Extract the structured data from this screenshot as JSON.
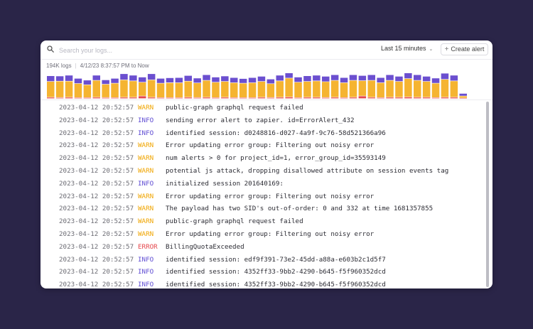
{
  "search": {
    "placeholder": "Search your logs..."
  },
  "toolbar": {
    "time_range": "Last 15 minutes",
    "create_alert_label": "Create alert"
  },
  "summary": {
    "count": "194K logs",
    "range": "4/12/23 8:37:57 PM to Now"
  },
  "colors": {
    "background": "#2a2548",
    "warn": "#f0a500",
    "info": "#5e4bd3",
    "error": "#e5484d",
    "bar_warn": "#f5b431",
    "bar_info": "#6b4fcf",
    "bar_error": "#e5484d"
  },
  "levels_legend": [
    "WARN",
    "INFO",
    "ERROR"
  ],
  "histogram": [
    {
      "warn": 0.62,
      "info": 0.22,
      "error": 0.05
    },
    {
      "warn": 0.64,
      "info": 0.2,
      "error": 0.04
    },
    {
      "warn": 0.63,
      "info": 0.23,
      "error": 0.05
    },
    {
      "warn": 0.55,
      "info": 0.2,
      "error": 0.04
    },
    {
      "warn": 0.5,
      "info": 0.18,
      "error": 0.04
    },
    {
      "warn": 0.66,
      "info": 0.2,
      "error": 0.05
    },
    {
      "warn": 0.52,
      "info": 0.17,
      "error": 0.04
    },
    {
      "warn": 0.56,
      "info": 0.19,
      "error": 0.04
    },
    {
      "warn": 0.68,
      "info": 0.24,
      "error": 0.05
    },
    {
      "warn": 0.64,
      "info": 0.22,
      "error": 0.05
    },
    {
      "warn": 0.54,
      "info": 0.2,
      "error": 0.1
    },
    {
      "warn": 0.68,
      "info": 0.24,
      "error": 0.05
    },
    {
      "warn": 0.56,
      "info": 0.19,
      "error": 0.04
    },
    {
      "warn": 0.58,
      "info": 0.19,
      "error": 0.04
    },
    {
      "warn": 0.58,
      "info": 0.2,
      "error": 0.04
    },
    {
      "warn": 0.63,
      "info": 0.22,
      "error": 0.05
    },
    {
      "warn": 0.57,
      "info": 0.19,
      "error": 0.04
    },
    {
      "warn": 0.66,
      "info": 0.22,
      "error": 0.05
    },
    {
      "warn": 0.6,
      "info": 0.2,
      "error": 0.04
    },
    {
      "warn": 0.62,
      "info": 0.21,
      "error": 0.05
    },
    {
      "warn": 0.58,
      "info": 0.2,
      "error": 0.04
    },
    {
      "warn": 0.56,
      "info": 0.18,
      "error": 0.04
    },
    {
      "warn": 0.58,
      "info": 0.2,
      "error": 0.04
    },
    {
      "warn": 0.62,
      "info": 0.2,
      "error": 0.05
    },
    {
      "warn": 0.54,
      "info": 0.18,
      "error": 0.04
    },
    {
      "warn": 0.64,
      "info": 0.22,
      "error": 0.05
    },
    {
      "warn": 0.74,
      "info": 0.24,
      "error": 0.06
    },
    {
      "warn": 0.6,
      "info": 0.2,
      "error": 0.04
    },
    {
      "warn": 0.62,
      "info": 0.22,
      "error": 0.05
    },
    {
      "warn": 0.64,
      "info": 0.22,
      "error": 0.05
    },
    {
      "warn": 0.62,
      "info": 0.21,
      "error": 0.04
    },
    {
      "warn": 0.66,
      "info": 0.22,
      "error": 0.05
    },
    {
      "warn": 0.58,
      "info": 0.2,
      "error": 0.04
    },
    {
      "warn": 0.66,
      "info": 0.22,
      "error": 0.05
    },
    {
      "warn": 0.6,
      "info": 0.2,
      "error": 0.1
    },
    {
      "warn": 0.66,
      "info": 0.22,
      "error": 0.05
    },
    {
      "warn": 0.58,
      "info": 0.2,
      "error": 0.04
    },
    {
      "warn": 0.66,
      "info": 0.22,
      "error": 0.05
    },
    {
      "warn": 0.62,
      "info": 0.2,
      "error": 0.05
    },
    {
      "warn": 0.72,
      "info": 0.24,
      "error": 0.06
    },
    {
      "warn": 0.66,
      "info": 0.22,
      "error": 0.05
    },
    {
      "warn": 0.62,
      "info": 0.2,
      "error": 0.05
    },
    {
      "warn": 0.56,
      "info": 0.2,
      "error": 0.04
    },
    {
      "warn": 0.7,
      "info": 0.24,
      "error": 0.05
    },
    {
      "warn": 0.64,
      "info": 0.22,
      "error": 0.05
    },
    {
      "warn": 0.08,
      "info": 0.1,
      "error": 0.02
    }
  ],
  "logs": [
    {
      "timestamp": "2023-04-12 20:52:57",
      "level": "WARN",
      "message": "public-graph graphql request failed"
    },
    {
      "timestamp": "2023-04-12 20:52:57",
      "level": "INFO",
      "message": "sending error alert to zapier. id=ErrorAlert_432"
    },
    {
      "timestamp": "2023-04-12 20:52:57",
      "level": "INFO",
      "message": "identified session: d0248816-d027-4a9f-9c76-58d521366a96"
    },
    {
      "timestamp": "2023-04-12 20:52:57",
      "level": "WARN",
      "message": "Error updating error group: Filtering out noisy error"
    },
    {
      "timestamp": "2023-04-12 20:52:57",
      "level": "WARN",
      "message": "num alerts > 0 for project_id=1, error_group_id=35593149"
    },
    {
      "timestamp": "2023-04-12 20:52:57",
      "level": "WARN",
      "message": "potential js attack, dropping disallowed attribute on session events tag"
    },
    {
      "timestamp": "2023-04-12 20:52:57",
      "level": "INFO",
      "message": "initialized session 201640169:"
    },
    {
      "timestamp": "2023-04-12 20:52:57",
      "level": "WARN",
      "message": "Error updating error group: Filtering out noisy error"
    },
    {
      "timestamp": "2023-04-12 20:52:57",
      "level": "WARN",
      "message": "The payload has two SID's out-of-order: 0 and 332 at time 1681357855"
    },
    {
      "timestamp": "2023-04-12 20:52:57",
      "level": "WARN",
      "message": "public-graph graphql request failed"
    },
    {
      "timestamp": "2023-04-12 20:52:57",
      "level": "WARN",
      "message": "Error updating error group: Filtering out noisy error"
    },
    {
      "timestamp": "2023-04-12 20:52:57",
      "level": "ERROR",
      "message": "BillingQuotaExceeded"
    },
    {
      "timestamp": "2023-04-12 20:52:57",
      "level": "INFO",
      "message": "identified session: edf9f391-73e2-45dd-a88a-e603b2c1d5f7"
    },
    {
      "timestamp": "2023-04-12 20:52:57",
      "level": "INFO",
      "message": "identified session: 4352ff33-9bb2-4290-b645-f5f960352dcd"
    },
    {
      "timestamp": "2023-04-12 20:52:57",
      "level": "INFO",
      "message": "identified session: 4352ff33-9bb2-4290-b645-f5f960352dcd"
    }
  ]
}
